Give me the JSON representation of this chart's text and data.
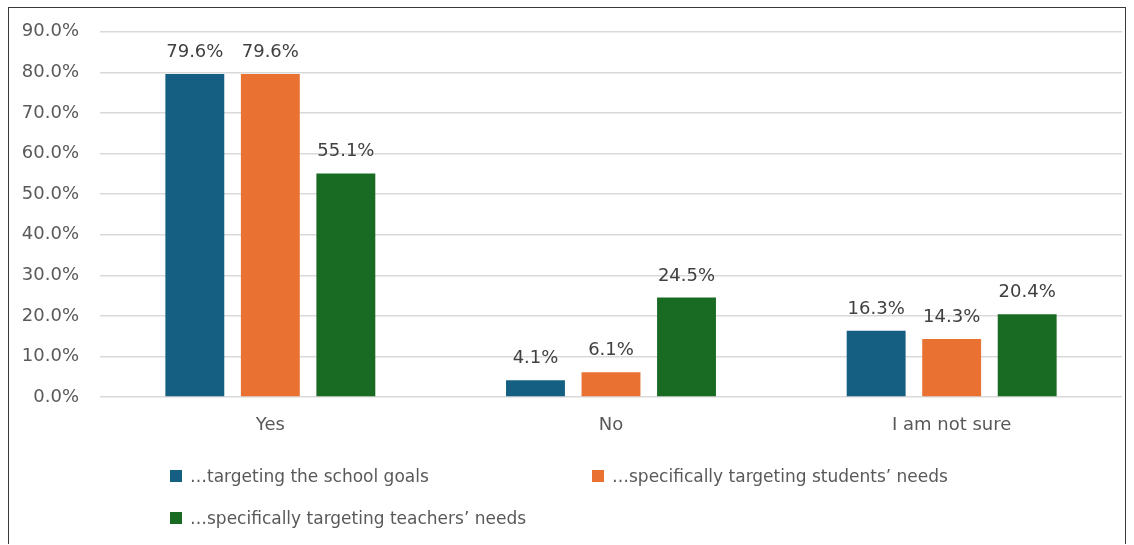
{
  "chart_data": {
    "type": "bar",
    "categories": [
      "Yes",
      "No",
      "I am not sure"
    ],
    "series": [
      {
        "name": "…targeting the school goals",
        "color": "#156082",
        "values": [
          79.6,
          4.1,
          16.3
        ],
        "value_labels": [
          "79.6%",
          "4.1%",
          "16.3%"
        ]
      },
      {
        "name": "…specifically targeting students’ needs",
        "color": "#e97132",
        "values": [
          79.6,
          6.1,
          14.3
        ],
        "value_labels": [
          "79.6%",
          "6.1%",
          "14.3%"
        ]
      },
      {
        "name": "…specifically targeting teachers’ needs",
        "color": "#196b24",
        "values": [
          55.1,
          24.5,
          20.4
        ],
        "value_labels": [
          "55.1%",
          "24.5%",
          "20.4%"
        ]
      }
    ],
    "ylim": [
      0,
      90
    ],
    "yticks": [
      {
        "value": 0,
        "label": "0.0%"
      },
      {
        "value": 10,
        "label": "10.0%"
      },
      {
        "value": 20,
        "label": "20.0%"
      },
      {
        "value": 30,
        "label": "30.0%"
      },
      {
        "value": 40,
        "label": "40.0%"
      },
      {
        "value": 50,
        "label": "50.0%"
      },
      {
        "value": 60,
        "label": "60.0%"
      },
      {
        "value": 70,
        "label": "70.0%"
      },
      {
        "value": 80,
        "label": "80.0%"
      },
      {
        "value": 90,
        "label": "90.0%"
      }
    ],
    "grid": "y",
    "legend": "bottom"
  }
}
